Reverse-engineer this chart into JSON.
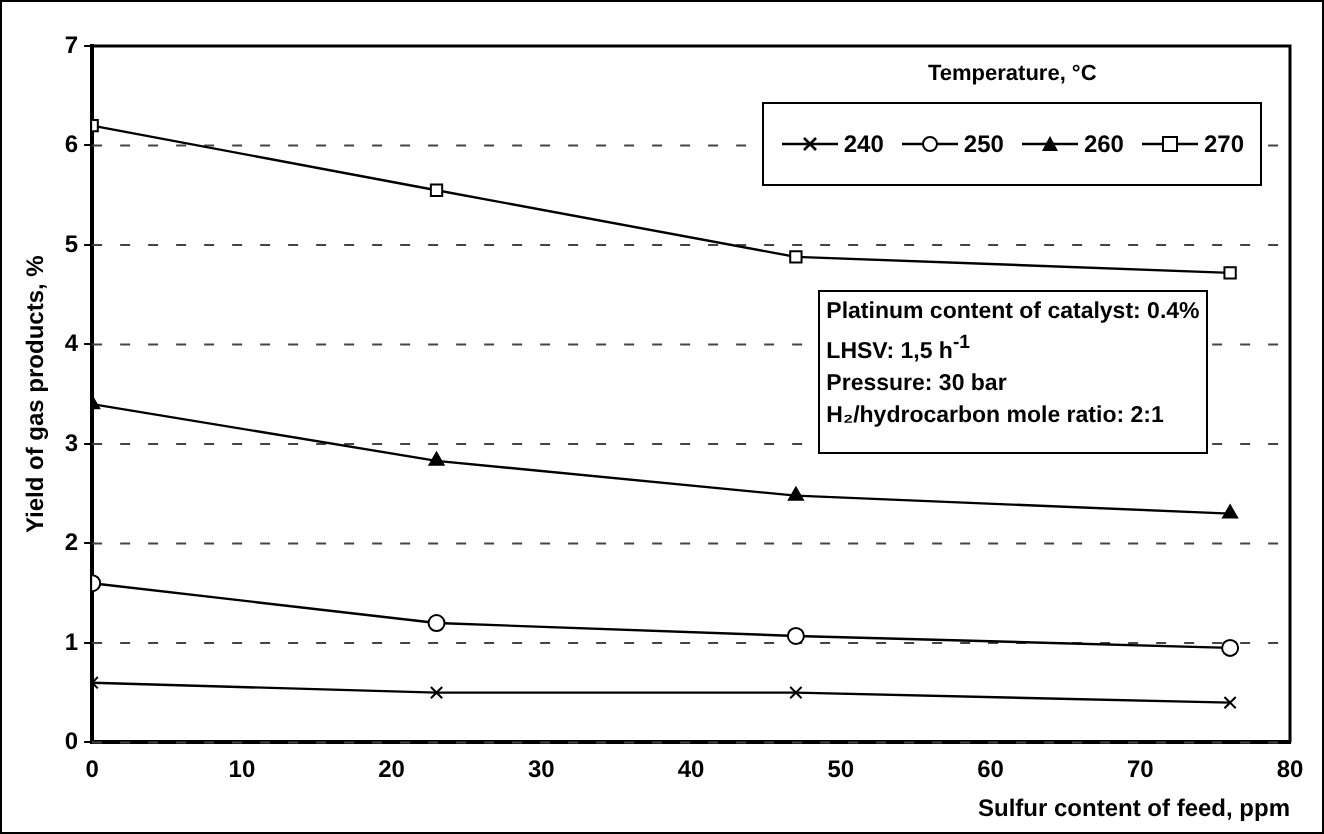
{
  "chart_data": {
    "type": "line",
    "xlabel": "Sulfur content of feed, ppm",
    "ylabel": "Yield of gas products, %",
    "legend_title": "Temperature, °C",
    "legend": "top right",
    "grid": "y",
    "line_style": "solid",
    "x": [
      0,
      23,
      47,
      76
    ],
    "xlim": [
      0,
      80
    ],
    "xticks": [
      0,
      10,
      20,
      30,
      40,
      50,
      60,
      70,
      80
    ],
    "ylim": [
      0,
      7
    ],
    "yticks": [
      0,
      1,
      2,
      3,
      4,
      5,
      6,
      7
    ],
    "series": [
      {
        "name": "240",
        "color": "#000000",
        "marker": "cross",
        "values": [
          0.6,
          0.5,
          0.5,
          0.4
        ]
      },
      {
        "name": "250",
        "color": "#000000",
        "marker": "circle",
        "values": [
          1.6,
          1.2,
          1.07,
          0.95
        ]
      },
      {
        "name": "260",
        "color": "#000000",
        "marker": "triangle",
        "values": [
          3.4,
          2.83,
          2.48,
          2.3
        ]
      },
      {
        "name": "270",
        "color": "#000000",
        "marker": "square",
        "values": [
          6.2,
          5.55,
          4.88,
          4.72
        ]
      }
    ],
    "annotations": [
      "Platinum content of catalyst: 0.4%",
      "LHSV: 1,5 h$^{-1}$",
      "Pressure: 30 bar",
      "H₂/hydrocarbon mole ratio: 2:1"
    ]
  }
}
